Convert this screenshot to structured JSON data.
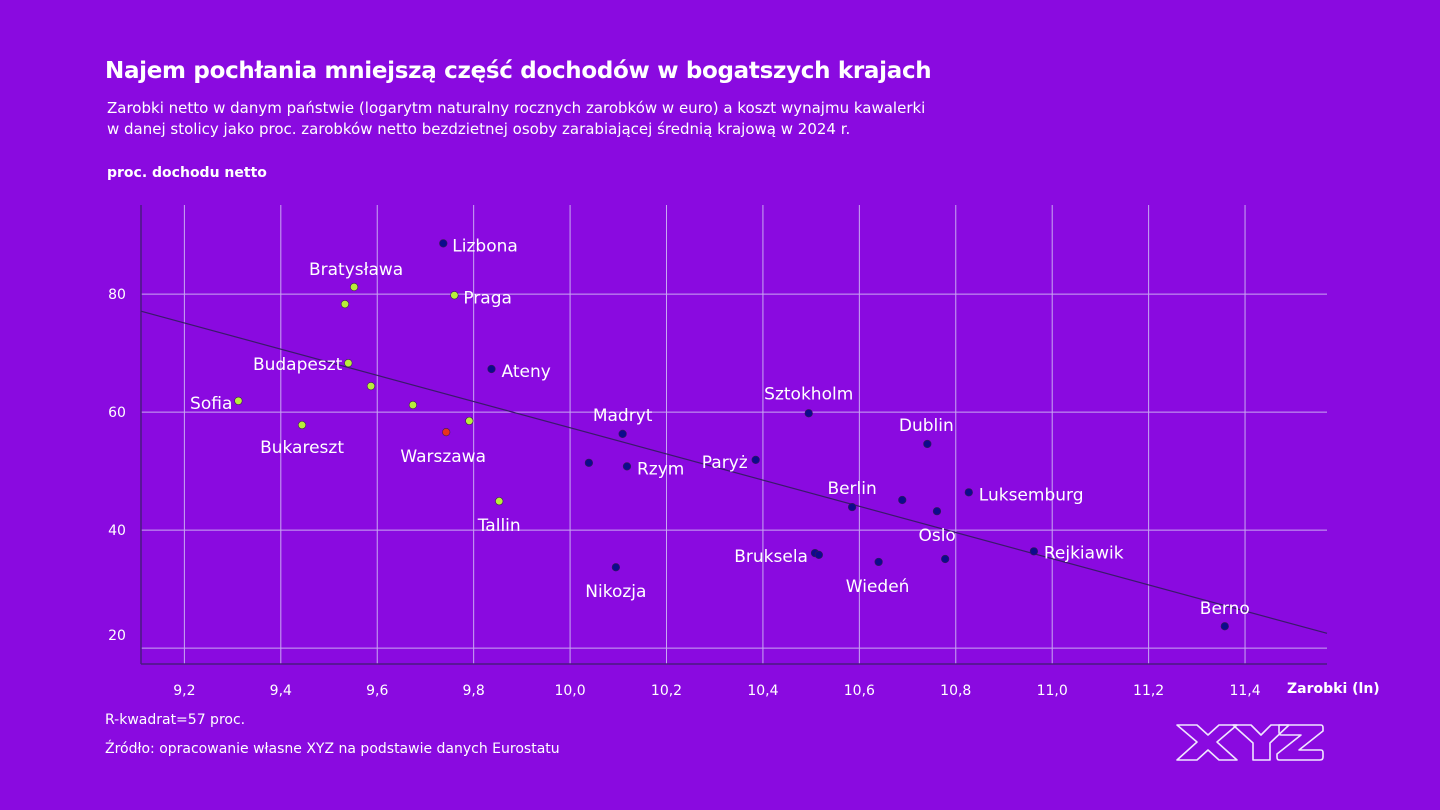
{
  "header": {
    "title": "Najem pochłania mniejszą część dochodów w bogatszych krajach",
    "subtitle_line1": "Zarobki netto w danym państwie (logarytm naturalny rocznych zarobków w euro) a koszt wynajmu kawalerki",
    "subtitle_line2": "w danej stolicy jako proc. zarobków netto bezdzietnej osoby zarabiającej średnią krajową w 2024 r."
  },
  "footer": {
    "r_squared": "R-kwadrat=57 proc.",
    "source": "Źródło: opracowanie własne XYZ na podstawie danych Eurostatu",
    "logo_text": "XYZ"
  },
  "colors": {
    "background": "#8a0ae0",
    "dark_point": "#0d0b8c",
    "green_point": "#b8ee3a",
    "highlight_point": "#e8321c",
    "trend": "#3a1a6a"
  },
  "chart_data": {
    "type": "scatter",
    "title": "Najem pochłania mniejszą część dochodów w bogatszych krajach",
    "xlabel": "Zarobki (ln)",
    "ylabel": "proc. dochodu netto",
    "xlim": [
      9.11,
      11.57
    ],
    "ylim": [
      17.3,
      95.1
    ],
    "xticks": [
      "9,2",
      "9,4",
      "9,6",
      "9,8",
      "10,0",
      "10,2",
      "10,4",
      "10,6",
      "10,8",
      "11,0",
      "11,2",
      "11,4"
    ],
    "xtick_values": [
      9.2,
      9.4,
      9.6,
      9.8,
      10.0,
      10.2,
      10.4,
      10.6,
      10.8,
      11.0,
      11.2,
      11.4
    ],
    "yticks": [
      "20",
      "40",
      "60",
      "80"
    ],
    "ytick_values": [
      20,
      40,
      60,
      80
    ],
    "grid": true,
    "trendline": {
      "x": [
        9.11,
        11.57
      ],
      "y": [
        77.1,
        22.5
      ]
    },
    "r_squared": 0.57,
    "points": [
      {
        "label": "Lizbona",
        "x": 9.737,
        "y": 88.6,
        "group": "dark"
      },
      {
        "label": "Bratysława",
        "x": 9.552,
        "y": 81.2,
        "group": "green"
      },
      {
        "label": "",
        "x": 9.533,
        "y": 78.3,
        "group": "green"
      },
      {
        "label": "Praga",
        "x": 9.76,
        "y": 79.8,
        "group": "green"
      },
      {
        "label": "Budapeszt",
        "x": 9.54,
        "y": 68.3,
        "group": "green"
      },
      {
        "label": "",
        "x": 9.587,
        "y": 64.4,
        "group": "green"
      },
      {
        "label": "",
        "x": 9.674,
        "y": 61.2,
        "group": "green"
      },
      {
        "label": "Sofia",
        "x": 9.312,
        "y": 61.9,
        "group": "green"
      },
      {
        "label": "Bukareszt",
        "x": 9.444,
        "y": 57.8,
        "group": "green"
      },
      {
        "label": "Warszawa",
        "x": 9.743,
        "y": 56.6,
        "group": "highlight"
      },
      {
        "label": "",
        "x": 9.791,
        "y": 58.5,
        "group": "green"
      },
      {
        "label": "Ateny",
        "x": 9.837,
        "y": 67.3,
        "group": "dark"
      },
      {
        "label": "Tallin",
        "x": 9.853,
        "y": 44.9,
        "group": "green"
      },
      {
        "label": "Madryt",
        "x": 10.109,
        "y": 56.3,
        "group": "dark"
      },
      {
        "label": "",
        "x": 10.039,
        "y": 51.4,
        "group": "dark"
      },
      {
        "label": "Rzym",
        "x": 10.118,
        "y": 50.8,
        "group": "dark"
      },
      {
        "label": "Paryż",
        "x": 10.385,
        "y": 51.9,
        "group": "dark"
      },
      {
        "label": "Sztokholm",
        "x": 10.495,
        "y": 59.8,
        "group": "dark"
      },
      {
        "label": "Dublin",
        "x": 10.741,
        "y": 54.6,
        "group": "dark"
      },
      {
        "label": "Berlin",
        "x": 10.585,
        "y": 43.9,
        "group": "dark"
      },
      {
        "label": "",
        "x": 10.689,
        "y": 45.1,
        "group": "dark"
      },
      {
        "label": "",
        "x": 10.761,
        "y": 43.2,
        "group": "dark"
      },
      {
        "label": "Luksemburg",
        "x": 10.827,
        "y": 46.4,
        "group": "dark"
      },
      {
        "label": "Oslo",
        "x": 10.778,
        "y": 35.1,
        "group": "dark"
      },
      {
        "label": "Rejkiawik",
        "x": 10.962,
        "y": 36.4,
        "group": "dark"
      },
      {
        "label": "Bruksela",
        "x": 10.508,
        "y": 36.1,
        "group": "dark"
      },
      {
        "label": "",
        "x": 10.516,
        "y": 35.8,
        "group": "dark"
      },
      {
        "label": "Wiedeń",
        "x": 10.64,
        "y": 34.6,
        "group": "dark"
      },
      {
        "label": "Nikozja",
        "x": 10.095,
        "y": 33.7,
        "group": "dark"
      },
      {
        "label": "Berno",
        "x": 11.358,
        "y": 23.7,
        "group": "dark"
      }
    ]
  }
}
